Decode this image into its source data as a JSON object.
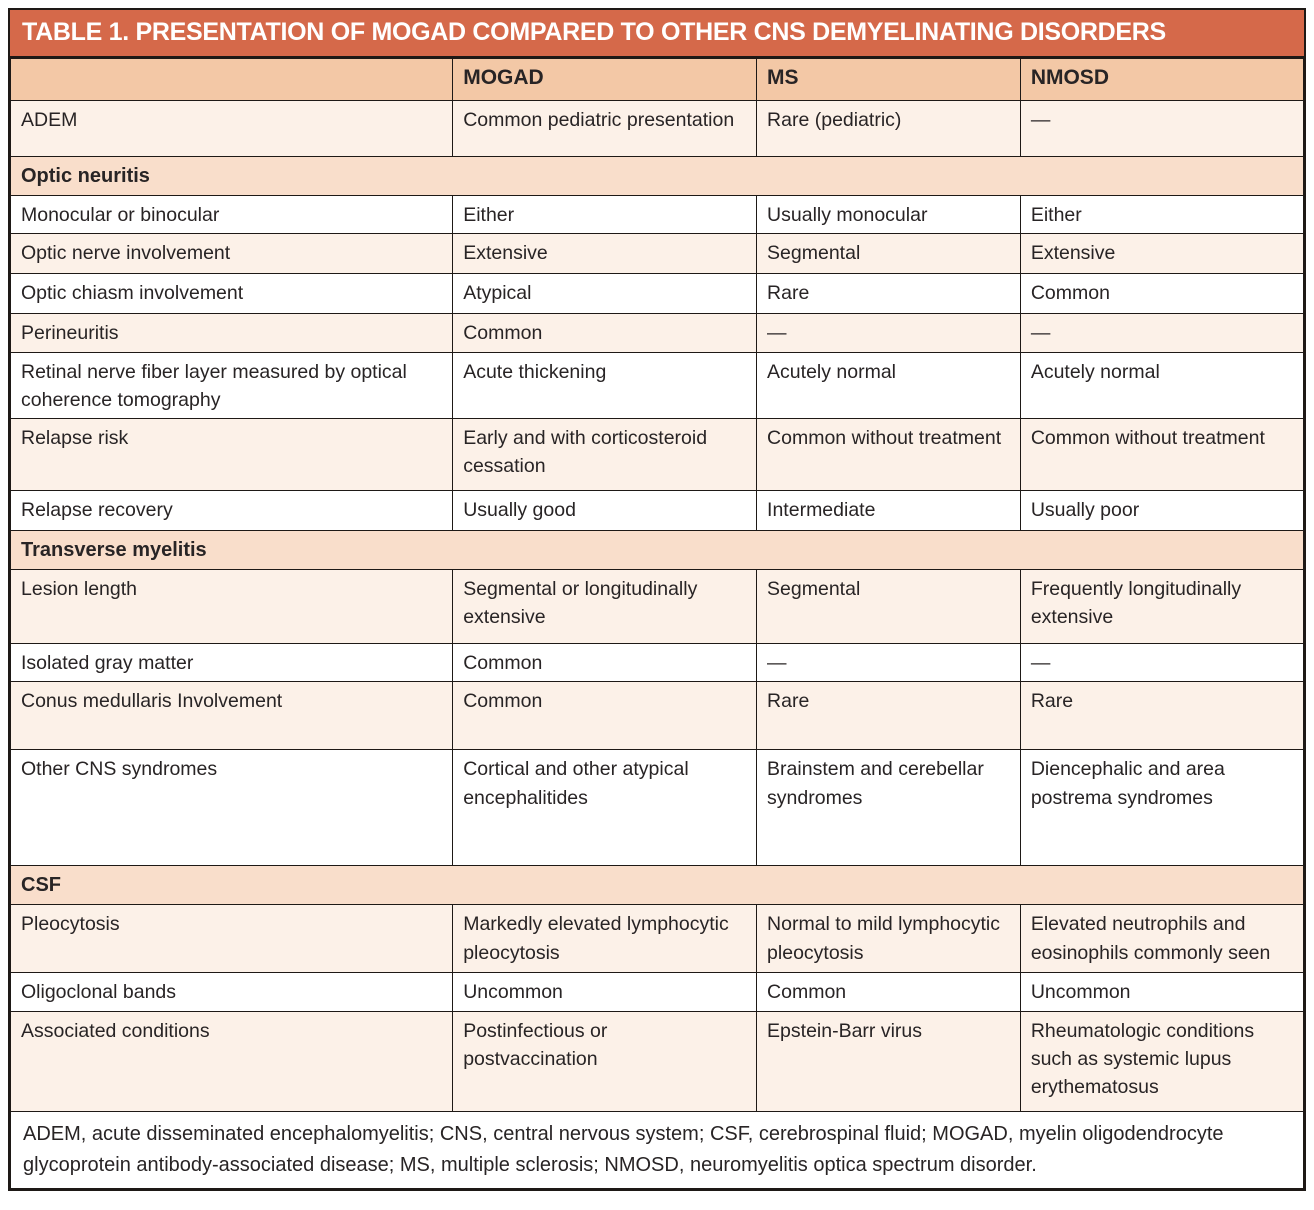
{
  "title": "TABLE 1. PRESENTATION OF MOGAD COMPARED TO OTHER CNS DEMYELINATING DISORDERS",
  "header": {
    "columns": [
      "",
      "MOGAD",
      "MS",
      "NMOSD"
    ]
  },
  "rows": [
    {
      "type": "data",
      "label": "ADEM",
      "values": [
        "Common pediatric presentation",
        "Rare (pediatric)",
        "—"
      ]
    },
    {
      "type": "section",
      "label": "Optic neuritis"
    },
    {
      "type": "data",
      "label": "Monocular or binocular",
      "values": [
        "Either",
        "Usually monocular",
        "Either"
      ]
    },
    {
      "type": "data",
      "label": "Optic nerve involvement",
      "values": [
        "Extensive",
        "Segmental",
        "Extensive"
      ]
    },
    {
      "type": "data",
      "label": "Optic chiasm involvement",
      "values": [
        "Atypical",
        "Rare",
        "Common"
      ]
    },
    {
      "type": "data",
      "label": "Perineuritis",
      "values": [
        "Common",
        "—",
        "—"
      ]
    },
    {
      "type": "data",
      "label": "Retinal nerve fiber layer measured by optical coherence tomography",
      "values": [
        "Acute thickening",
        "Acutely normal",
        "Acutely normal"
      ]
    },
    {
      "type": "data",
      "label": "Relapse risk",
      "values": [
        "Early and with corticosteroid cessation",
        "Common without treatment",
        "Common without treatment"
      ]
    },
    {
      "type": "data",
      "label": "Relapse recovery",
      "values": [
        "Usually good",
        "Intermediate",
        "Usually poor"
      ]
    },
    {
      "type": "section",
      "label": "Transverse myelitis"
    },
    {
      "type": "data",
      "label": "Lesion length",
      "values": [
        "Segmental or longitudinally extensive",
        "Segmental",
        "Frequently longitudinally extensive"
      ]
    },
    {
      "type": "data",
      "label": "Isolated gray matter",
      "values": [
        "Common",
        "—",
        "—"
      ]
    },
    {
      "type": "data",
      "label": "Conus medullaris Involvement",
      "values": [
        "Common",
        "Rare",
        "Rare"
      ]
    },
    {
      "type": "data",
      "label": "Other CNS syndromes",
      "values": [
        "Cortical and other atypical encephalitides",
        "Brainstem and cerebellar syndromes",
        "Diencephalic and area postrema syndromes"
      ]
    },
    {
      "type": "section",
      "label": "CSF"
    },
    {
      "type": "data",
      "label": "Pleocytosis",
      "values": [
        "Markedly elevated lymphocytic pleocytosis",
        "Normal to mild lymphocytic pleocytosis",
        "Elevated neutrophils and eosinophils commonly seen"
      ]
    },
    {
      "type": "data",
      "label": "Oligoclonal bands",
      "values": [
        "Uncommon",
        "Common",
        "Uncommon"
      ]
    },
    {
      "type": "data",
      "label": "Associated conditions",
      "values": [
        "Postinfectious or postvaccination",
        "Epstein-Barr virus",
        "Rheumatologic conditions such as systemic lupus erythematosus"
      ]
    }
  ],
  "footnote": "ADEM, acute disseminated encephalomyelitis; CNS, central nervous system; CSF, cerebrospinal fluid; MOGAD, myelin oligodendrocyte glycoprotein antibody-associated disease; MS, multiple sclerosis; NMOSD, neuromyelitis optica spectrum disorder.",
  "colors": {
    "title_bar": "#D5694A",
    "title_text": "#FFFFFF",
    "column_header": "#F3C8A6",
    "section_header": "#F9DECB",
    "row_tint": "#FCF1E8",
    "row_white": "#FFFFFF",
    "border": "#1E1916",
    "text": "#282425"
  }
}
